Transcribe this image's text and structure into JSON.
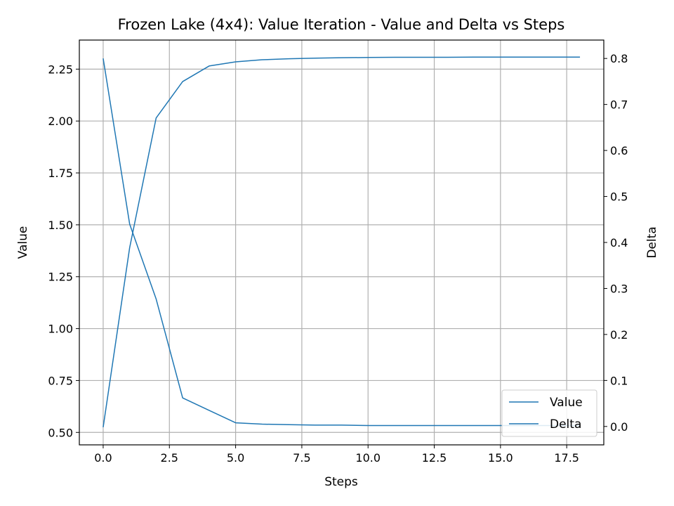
{
  "chart_data": {
    "type": "line",
    "title": "Frozen Lake (4x4): Value Iteration - Value and Delta vs Steps",
    "xlabel": "Steps",
    "ylabel": "Value",
    "y2label": "Delta",
    "xlim": [
      -0.9,
      18.9
    ],
    "ylim": [
      0.44,
      2.39
    ],
    "y2lim": [
      -0.04,
      0.84
    ],
    "xticks": [
      0.0,
      2.5,
      5.0,
      7.5,
      10.0,
      12.5,
      15.0,
      17.5
    ],
    "xtick_labels": [
      "0.0",
      "2.5",
      "5.0",
      "7.5",
      "10.0",
      "12.5",
      "15.0",
      "17.5"
    ],
    "yticks": [
      0.5,
      0.75,
      1.0,
      1.25,
      1.5,
      1.75,
      2.0,
      2.25
    ],
    "ytick_labels": [
      "0.50",
      "0.75",
      "1.00",
      "1.25",
      "1.50",
      "1.75",
      "2.00",
      "2.25"
    ],
    "y2ticks": [
      0.0,
      0.1,
      0.2,
      0.3,
      0.4,
      0.5,
      0.6,
      0.7,
      0.8
    ],
    "y2tick_labels": [
      "0.0",
      "0.1",
      "0.2",
      "0.3",
      "0.4",
      "0.5",
      "0.6",
      "0.7",
      "0.8"
    ],
    "grid": true,
    "legend_position": "bottom-right",
    "color": "#1f77b4",
    "series": [
      {
        "name": "Value",
        "axis": "left",
        "x": [
          0,
          1,
          2,
          3,
          4,
          5,
          6,
          7,
          8,
          9,
          10,
          11,
          12,
          13,
          14,
          15,
          16,
          17,
          18
        ],
        "values": [
          0.525,
          1.39,
          2.015,
          2.19,
          2.265,
          2.285,
          2.295,
          2.3,
          2.303,
          2.305,
          2.306,
          2.307,
          2.307,
          2.307,
          2.308,
          2.308,
          2.308,
          2.308,
          2.308
        ]
      },
      {
        "name": "Delta",
        "axis": "right",
        "x": [
          0,
          1,
          2,
          3,
          4,
          5,
          6,
          7,
          8,
          9,
          10,
          11,
          12,
          13,
          14,
          15,
          16,
          17,
          18
        ],
        "values": [
          0.8,
          0.44,
          0.277,
          0.062,
          0.035,
          0.008,
          0.005,
          0.004,
          0.003,
          0.003,
          0.002,
          0.002,
          0.002,
          0.002,
          0.002,
          0.002,
          0.002,
          0.002,
          0.002
        ]
      }
    ]
  }
}
